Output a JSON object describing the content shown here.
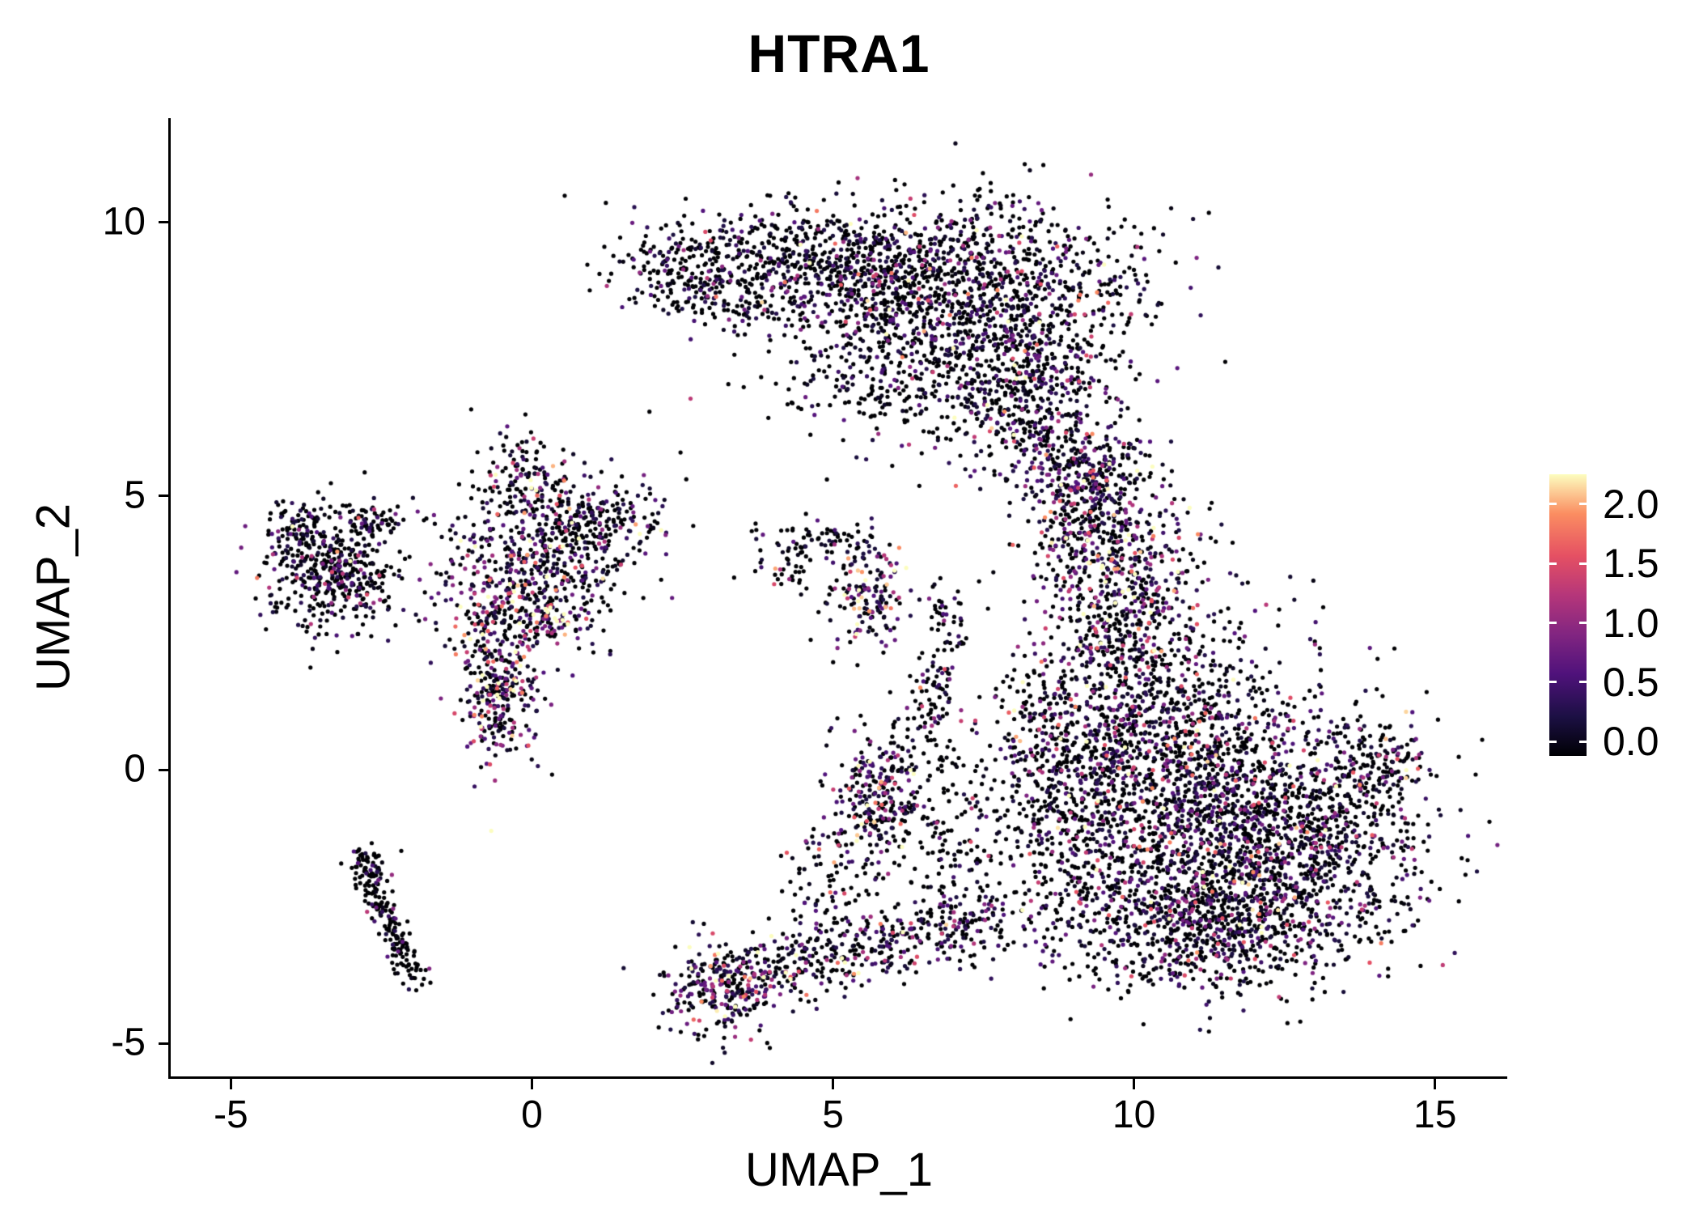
{
  "chart_data": {
    "type": "scatter",
    "title": "HTRA1",
    "xlabel": "UMAP_1",
    "ylabel": "UMAP_2",
    "xlim": [
      -6.0,
      16.2
    ],
    "ylim": [
      -5.6,
      11.9
    ],
    "grid": false,
    "point_radius": 2.6,
    "x_ticks": [
      {
        "value": -5,
        "label": "-5"
      },
      {
        "value": 0,
        "label": "0"
      },
      {
        "value": 5,
        "label": "5"
      },
      {
        "value": 10,
        "label": "10"
      },
      {
        "value": 15,
        "label": "15"
      }
    ],
    "y_ticks": [
      {
        "value": 10,
        "label": "10"
      },
      {
        "value": 5,
        "label": "5"
      },
      {
        "value": 0,
        "label": "0"
      },
      {
        "value": -5,
        "label": "-5"
      }
    ],
    "colorbar": {
      "position": "right",
      "vmin": 0.0,
      "vmax": 2.25,
      "ticks": [
        {
          "value": 2.0,
          "label": "2.0"
        },
        {
          "value": 1.5,
          "label": "1.5"
        },
        {
          "value": 1.0,
          "label": "1.0"
        },
        {
          "value": 0.5,
          "label": "0.5"
        },
        {
          "value": 0.0,
          "label": "0.0"
        }
      ],
      "colormap": "magma",
      "stops": [
        {
          "t": 0.0,
          "color": "#000004"
        },
        {
          "t": 0.14,
          "color": "#1c1044"
        },
        {
          "t": 0.29,
          "color": "#4f127b"
        },
        {
          "t": 0.43,
          "color": "#812581"
        },
        {
          "t": 0.57,
          "color": "#b5367a"
        },
        {
          "t": 0.71,
          "color": "#e55063"
        },
        {
          "t": 0.86,
          "color": "#fb8d61"
        },
        {
          "t": 1.0,
          "color": "#fcfdbf"
        }
      ]
    },
    "seed": 42,
    "clusters": [
      {
        "kind": "gauss",
        "cx": 7.1,
        "cy": 8.7,
        "sx": 1.5,
        "sy": 0.85,
        "n": 1350,
        "p0": 0.55,
        "m": 0.5
      },
      {
        "kind": "gauss",
        "cx": 4.7,
        "cy": 9.3,
        "sx": 1.15,
        "sy": 0.5,
        "n": 480,
        "p0": 0.6,
        "m": 0.45
      },
      {
        "kind": "gauss",
        "cx": 2.7,
        "cy": 9.0,
        "sx": 0.75,
        "sy": 0.42,
        "rot": -20,
        "n": 240,
        "p0": 0.6,
        "m": 0.45
      },
      {
        "kind": "gauss",
        "cx": 8.1,
        "cy": 6.9,
        "sx": 0.85,
        "sy": 0.75,
        "n": 430,
        "p0": 0.5,
        "m": 0.55
      },
      {
        "kind": "gauss",
        "cx": 8.9,
        "cy": 5.6,
        "sx": 0.5,
        "sy": 0.65,
        "n": 190,
        "p0": 0.45,
        "m": 0.6
      },
      {
        "kind": "gauss",
        "cx": 6.2,
        "cy": 7.1,
        "sx": 1.2,
        "sy": 0.6,
        "n": 220,
        "p0": 0.6,
        "m": 0.45
      },
      {
        "kind": "gauss",
        "cx": 10.6,
        "cy": 0.1,
        "sx": 1.25,
        "sy": 1.5,
        "n": 1550,
        "p0": 0.5,
        "m": 0.55
      },
      {
        "kind": "gauss",
        "cx": 12.3,
        "cy": -1.4,
        "sx": 1.25,
        "sy": 1.0,
        "n": 1250,
        "p0": 0.55,
        "m": 0.5
      },
      {
        "kind": "gauss",
        "cx": 11.2,
        "cy": -2.9,
        "sx": 1.15,
        "sy": 0.6,
        "n": 650,
        "p0": 0.5,
        "m": 0.55
      },
      {
        "kind": "gauss",
        "cx": 9.8,
        "cy": 3.1,
        "sx": 0.65,
        "sy": 1.15,
        "n": 580,
        "p0": 0.35,
        "m": 0.75
      },
      {
        "kind": "gauss",
        "cx": 9.3,
        "cy": 4.6,
        "sx": 0.5,
        "sy": 0.65,
        "n": 240,
        "p0": 0.4,
        "m": 0.7
      },
      {
        "kind": "gauss",
        "cx": 9.6,
        "cy": 5.6,
        "sx": 0.3,
        "sy": 0.35,
        "n": 50,
        "p0": 0.5,
        "m": 0.5
      },
      {
        "kind": "gauss",
        "cx": 14.05,
        "cy": 0.1,
        "sx": 0.4,
        "sy": 0.5,
        "n": 150,
        "p0": 0.45,
        "m": 0.7
      },
      {
        "kind": "gauss",
        "cx": 9.0,
        "cy": -1.0,
        "sx": 0.6,
        "sy": 1.1,
        "n": 280,
        "p0": 0.6,
        "m": 0.5
      },
      {
        "kind": "gauss",
        "cx": 8.5,
        "cy": 0.9,
        "sx": 0.5,
        "sy": 0.8,
        "n": 140,
        "p0": 0.6,
        "m": 0.5
      },
      {
        "kind": "gauss",
        "cx": 0.1,
        "cy": 3.9,
        "sx": 0.75,
        "sy": 0.8,
        "n": 540,
        "p0": 0.45,
        "m": 0.6
      },
      {
        "kind": "gauss",
        "cx": -0.5,
        "cy": 2.6,
        "sx": 0.5,
        "sy": 0.6,
        "n": 240,
        "p0": 0.4,
        "m": 0.7
      },
      {
        "kind": "gauss",
        "cx": -0.55,
        "cy": 1.2,
        "sx": 0.32,
        "sy": 0.5,
        "n": 210,
        "p0": 0.3,
        "m": 0.9
      },
      {
        "kind": "gauss",
        "cx": 1.15,
        "cy": 4.55,
        "sx": 0.55,
        "sy": 0.35,
        "n": 170,
        "p0": 0.5,
        "m": 0.55
      },
      {
        "kind": "gauss",
        "cx": -0.1,
        "cy": 5.5,
        "sx": 0.3,
        "sy": 0.4,
        "n": 80,
        "p0": 0.5,
        "m": 0.6
      },
      {
        "kind": "gauss",
        "cx": 0.35,
        "cy": 2.75,
        "sx": 0.16,
        "sy": 0.13,
        "n": 34,
        "p0": 0.05,
        "m": 1.7
      },
      {
        "kind": "gauss",
        "cx": -3.3,
        "cy": 3.6,
        "sx": 0.55,
        "sy": 0.55,
        "n": 430,
        "p0": 0.6,
        "m": 0.5
      },
      {
        "kind": "gauss",
        "cx": -3.9,
        "cy": 4.35,
        "sx": 0.25,
        "sy": 0.25,
        "n": 80,
        "p0": 0.55,
        "m": 0.5
      },
      {
        "kind": "gauss",
        "cx": -2.55,
        "cy": 4.6,
        "sx": 0.3,
        "sy": 0.18,
        "n": 55,
        "p0": 0.6,
        "m": 0.5
      },
      {
        "kind": "gauss",
        "cx": 5.6,
        "cy": 3.2,
        "sx": 0.33,
        "sy": 0.5,
        "n": 160,
        "p0": 0.3,
        "m": 0.8
      },
      {
        "kind": "gauss",
        "cx": 4.7,
        "cy": 4.2,
        "sx": 0.45,
        "sy": 0.22,
        "n": 70,
        "p0": 0.65,
        "m": 0.4
      },
      {
        "kind": "gauss",
        "cx": 4.25,
        "cy": 3.6,
        "sx": 0.3,
        "sy": 0.25,
        "n": 30,
        "p0": 0.6,
        "m": 0.5
      },
      {
        "kind": "line",
        "x1": -2.85,
        "y1": -1.6,
        "x2": -1.95,
        "y2": -3.85,
        "jitter": 0.12,
        "n": 170,
        "p0": 0.8,
        "m": 0.35
      },
      {
        "kind": "gauss",
        "cx": -2.7,
        "cy": -1.75,
        "sx": 0.18,
        "sy": 0.22,
        "n": 40,
        "p0": 0.65,
        "m": 0.5
      },
      {
        "kind": "gauss",
        "cx": 3.25,
        "cy": -4.0,
        "sx": 0.5,
        "sy": 0.45,
        "n": 280,
        "p0": 0.35,
        "m": 0.8
      },
      {
        "kind": "line",
        "x1": 3.6,
        "y1": -3.8,
        "x2": 7.8,
        "y2": -2.7,
        "jitter": 0.35,
        "n": 430,
        "p0": 0.45,
        "m": 0.7
      },
      {
        "kind": "gauss",
        "cx": 5.75,
        "cy": -0.35,
        "sx": 0.4,
        "sy": 0.55,
        "n": 230,
        "p0": 0.4,
        "m": 0.75
      },
      {
        "kind": "gauss",
        "cx": 7.0,
        "cy": -1.0,
        "sx": 0.8,
        "sy": 0.9,
        "n": 220,
        "p0": 0.65,
        "m": 0.5
      },
      {
        "kind": "line",
        "x1": 6.6,
        "y1": 0.5,
        "x2": 6.85,
        "y2": 3.2,
        "jitter": 0.2,
        "n": 120,
        "p0": 0.65,
        "m": 0.5
      },
      {
        "kind": "gauss",
        "cx": 5.0,
        "cy": -1.9,
        "sx": 0.4,
        "sy": 0.5,
        "n": 90,
        "p0": 0.55,
        "m": 0.6
      }
    ]
  }
}
